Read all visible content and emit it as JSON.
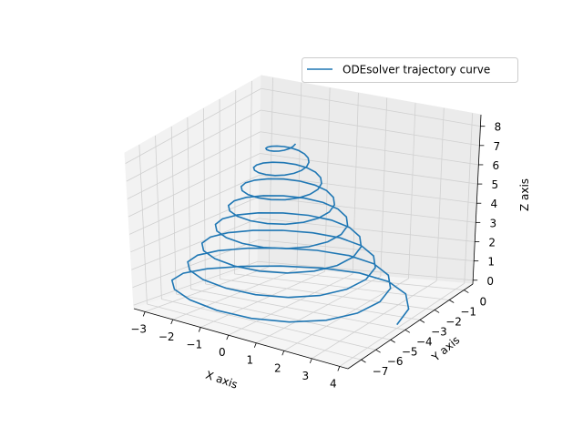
{
  "chart_data": {
    "type": "line",
    "projection": "3d",
    "title": "",
    "xlabel": "X axis",
    "ylabel": "Y axis",
    "zlabel": "Z axis",
    "xlim": [
      -3.4,
      4.3
    ],
    "ylim": [
      -7.9,
      0.6
    ],
    "zlim": [
      -0.2,
      8.6
    ],
    "xticks": [
      "−3",
      "−2",
      "−1",
      "0",
      "1",
      "2",
      "3",
      "4"
    ],
    "yticks": [
      "−7",
      "−6",
      "−5",
      "−4",
      "−3",
      "−2",
      "−1",
      "0"
    ],
    "zticks": [
      "0",
      "1",
      "2",
      "3",
      "4",
      "5",
      "6",
      "7",
      "8"
    ],
    "grid": true,
    "legend": {
      "location": "upper right",
      "entries": [
        "ODEsolver trajectory curve"
      ]
    },
    "series": [
      {
        "name": "ODEsolver trajectory curve",
        "color": "#1f77b4",
        "description": "spiral trajectory from about (4, 0, 0) winding inward and upward to about (0, -4, 8.6)",
        "x0": 4.0,
        "y_center": -4.0,
        "z0": 0.0,
        "z1": 8.6,
        "start_radius": 4.0,
        "end_radius": 0.4,
        "turns": 8
      }
    ]
  },
  "legend_label": "ODEsolver trajectory curve"
}
